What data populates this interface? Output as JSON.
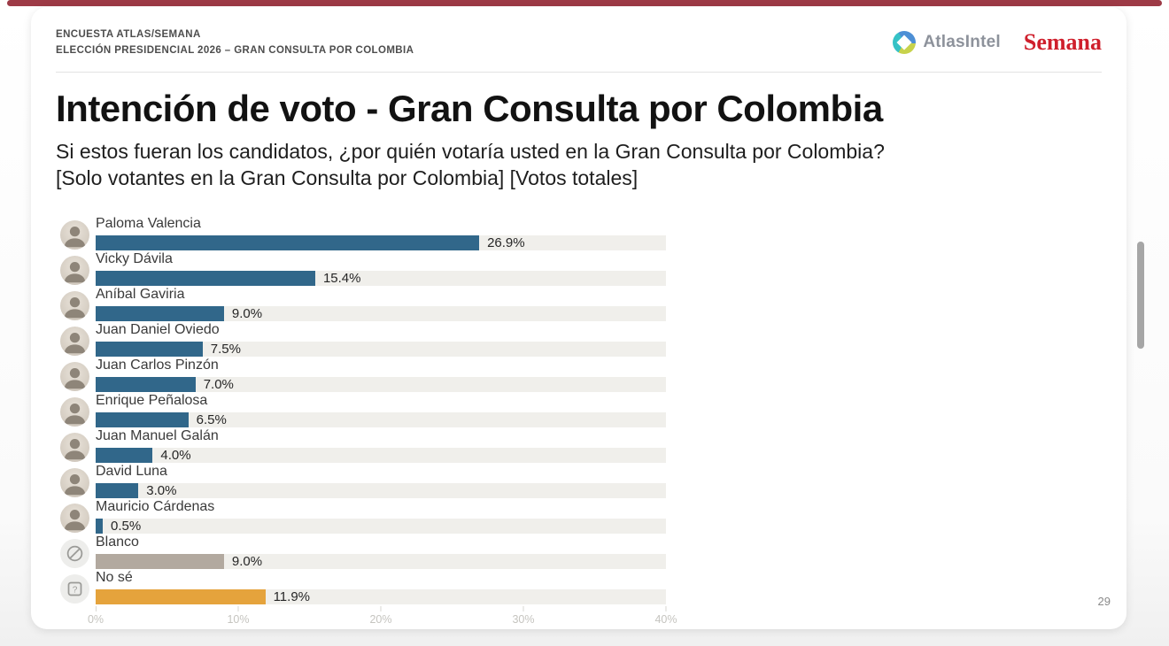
{
  "theme": {
    "top_strip_color": "#9d3a46",
    "bar_blue": "#31678a",
    "bar_taupe": "#b2a99f",
    "bar_amber": "#e5a33c",
    "track_color": "#f0efeb",
    "semana_red": "#cf1f2c",
    "atlas_gray": "#8d929b"
  },
  "header": {
    "kicker_line1": "ENCUESTA ATLAS/SEMANA",
    "kicker_line2": "ELECCIÓN PRESIDENCIAL 2026 – GRAN CONSULTA POR COLOMBIA",
    "atlas_brand": "AtlasIntel",
    "semana_brand": "Semana"
  },
  "title": "Intención de voto - Gran Consulta por Colombia",
  "subtitle_line1": "Si estos fueran los candidatos, ¿por quién votaría usted en la Gran Consulta por Colombia?",
  "subtitle_line2": "[Solo votantes en la Gran Consulta por Colombia] [Votos totales]",
  "chart_data": {
    "type": "bar",
    "orientation": "horizontal",
    "title": "Intención de voto - Gran Consulta por Colombia",
    "categories": [
      "Paloma Valencia",
      "Vicky Dávila",
      "Aníbal Gaviria",
      "Juan Daniel Oviedo",
      "Juan Carlos Pinzón",
      "Enrique Peñalosa",
      "Juan Manuel Galán",
      "David Luna",
      "Mauricio Cárdenas",
      "Blanco",
      "No sé"
    ],
    "values": [
      26.9,
      15.4,
      9.0,
      7.5,
      7.0,
      6.5,
      4.0,
      3.0,
      0.5,
      9.0,
      11.9
    ],
    "value_labels": [
      "26.9%",
      "15.4%",
      "9.0%",
      "7.5%",
      "7.0%",
      "6.5%",
      "4.0%",
      "3.0%",
      "0.5%",
      "9.0%",
      "11.9%"
    ],
    "bar_colors": [
      "#31678a",
      "#31678a",
      "#31678a",
      "#31678a",
      "#31678a",
      "#31678a",
      "#31678a",
      "#31678a",
      "#31678a",
      "#b2a99f",
      "#e5a33c"
    ],
    "row_icons": [
      "portrait",
      "portrait",
      "portrait",
      "portrait",
      "portrait",
      "portrait",
      "portrait",
      "portrait",
      "portrait",
      "blank-vote-icon",
      "question-icon"
    ],
    "xlim": [
      0,
      40
    ],
    "x_ticks": [
      "0%",
      "10%",
      "20%",
      "30%",
      "40%"
    ],
    "grid": false,
    "legend": false
  },
  "page": {
    "number": "29"
  }
}
